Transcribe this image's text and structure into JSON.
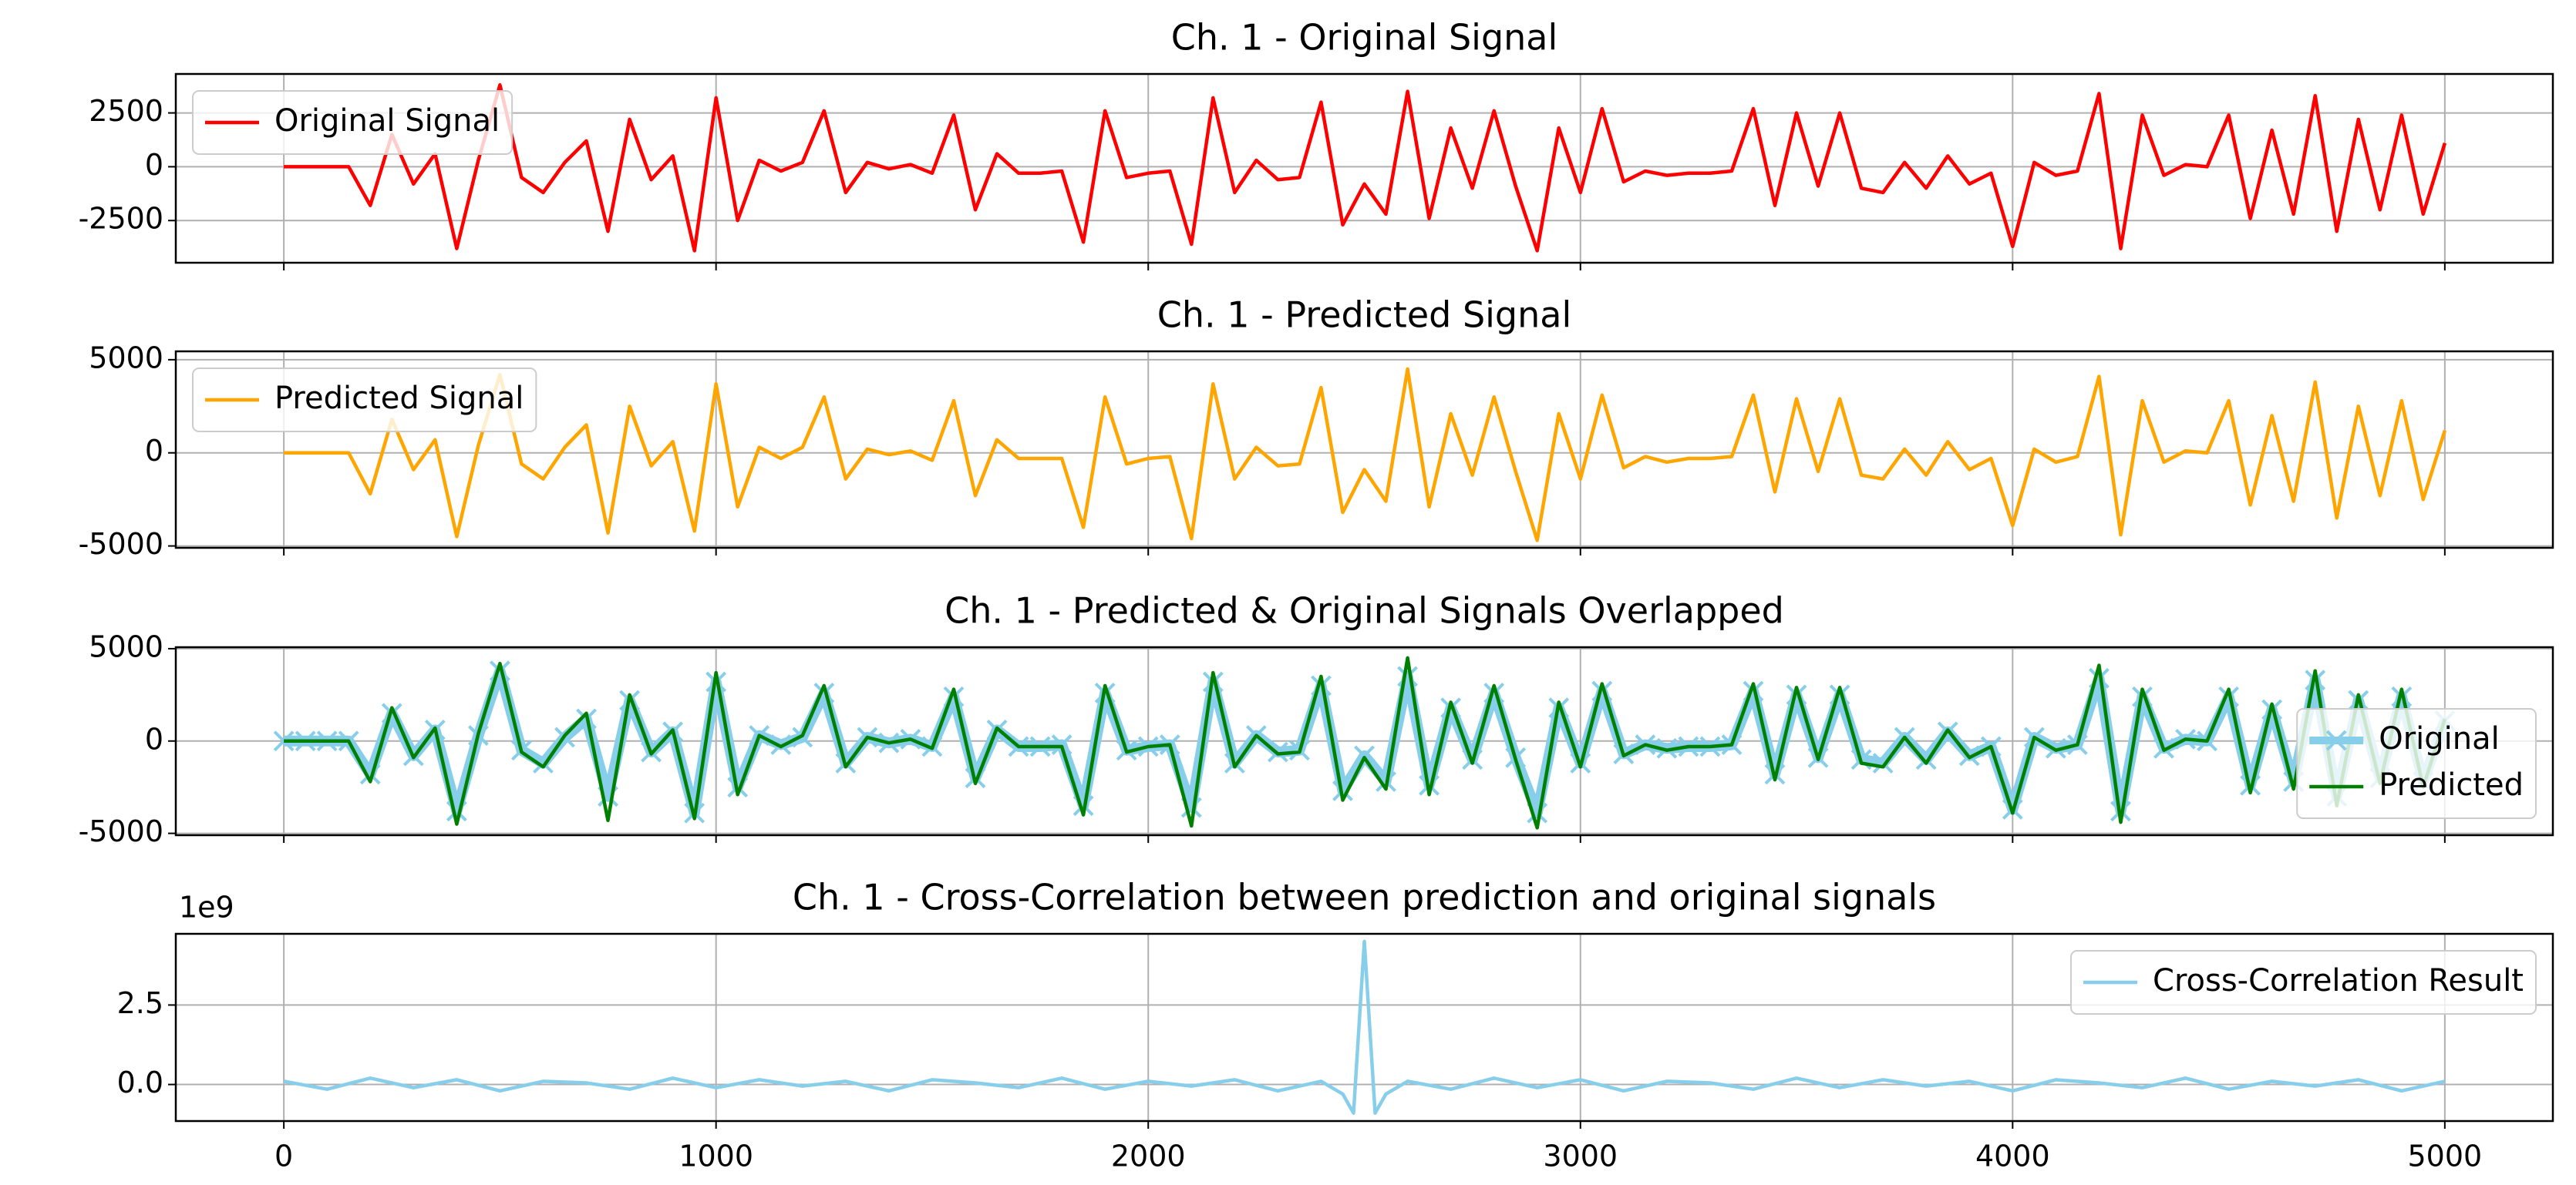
{
  "chart_data": [
    {
      "type": "line",
      "title": "Ch. 1 - Original Signal",
      "x": [
        0,
        50,
        100,
        150,
        200,
        250,
        300,
        350,
        400,
        450,
        500,
        550,
        600,
        650,
        700,
        750,
        800,
        850,
        900,
        950,
        1000,
        1050,
        1100,
        1150,
        1200,
        1250,
        1300,
        1350,
        1400,
        1450,
        1500,
        1550,
        1600,
        1650,
        1700,
        1750,
        1800,
        1850,
        1900,
        1950,
        2000,
        2050,
        2100,
        2150,
        2200,
        2250,
        2300,
        2350,
        2400,
        2450,
        2500,
        2550,
        2600,
        2650,
        2700,
        2750,
        2800,
        2850,
        2900,
        2950,
        3000,
        3050,
        3100,
        3150,
        3200,
        3250,
        3300,
        3350,
        3400,
        3450,
        3500,
        3550,
        3600,
        3650,
        3700,
        3750,
        3800,
        3850,
        3900,
        3950,
        4000,
        4050,
        4100,
        4150,
        4200,
        4250,
        4300,
        4350,
        4400,
        4450,
        4500,
        4550,
        4600,
        4650,
        4700,
        4750,
        4800,
        4850,
        4900,
        4950,
        5000
      ],
      "series": [
        {
          "name": "Original Signal",
          "color": "#ff0000",
          "values": [
            0,
            0,
            0,
            0,
            -1800,
            1500,
            -800,
            600,
            -3800,
            300,
            3800,
            -500,
            -1200,
            200,
            1200,
            -3000,
            2200,
            -600,
            500,
            -3900,
            3200,
            -2500,
            300,
            -200,
            200,
            2600,
            -1200,
            200,
            -100,
            100,
            -300,
            2400,
            -2000,
            600,
            -300,
            -300,
            -200,
            -3500,
            2600,
            -500,
            -300,
            -200,
            -3600,
            3200,
            -1200,
            300,
            -600,
            -500,
            3000,
            -2700,
            -800,
            -2200,
            3500,
            -2400,
            1800,
            -1000,
            2600,
            -900,
            -3900,
            1800,
            -1200,
            2700,
            -700,
            -200,
            -400,
            -300,
            -300,
            -200,
            2700,
            -1800,
            2500,
            -900,
            2500,
            -1000,
            -1200,
            200,
            -1000,
            500,
            -800,
            -300,
            -3700,
            200,
            -400,
            -200,
            3400,
            -3800,
            2400,
            -400,
            100,
            0,
            2400,
            -2400,
            1700,
            -2200,
            3300,
            -3000,
            2200,
            -2000,
            2400,
            -2200,
            1100
          ]
        }
      ],
      "xlim": [
        -250,
        5250
      ],
      "xticks": [
        0,
        1000,
        2000,
        3000,
        4000,
        5000
      ],
      "ylim": [
        -4460,
        4310
      ],
      "yticks": [
        2500,
        0,
        -2500
      ],
      "grid": true,
      "legend": "upper left"
    },
    {
      "type": "line",
      "title": "Ch. 1 - Predicted Signal",
      "x": [
        0,
        50,
        100,
        150,
        200,
        250,
        300,
        350,
        400,
        450,
        500,
        550,
        600,
        650,
        700,
        750,
        800,
        850,
        900,
        950,
        1000,
        1050,
        1100,
        1150,
        1200,
        1250,
        1300,
        1350,
        1400,
        1450,
        1500,
        1550,
        1600,
        1650,
        1700,
        1750,
        1800,
        1850,
        1900,
        1950,
        2000,
        2050,
        2100,
        2150,
        2200,
        2250,
        2300,
        2350,
        2400,
        2450,
        2500,
        2550,
        2600,
        2650,
        2700,
        2750,
        2800,
        2850,
        2900,
        2950,
        3000,
        3050,
        3100,
        3150,
        3200,
        3250,
        3300,
        3350,
        3400,
        3450,
        3500,
        3550,
        3600,
        3650,
        3700,
        3750,
        3800,
        3850,
        3900,
        3950,
        4000,
        4050,
        4100,
        4150,
        4200,
        4250,
        4300,
        4350,
        4400,
        4450,
        4500,
        4550,
        4600,
        4650,
        4700,
        4750,
        4800,
        4850,
        4900,
        4950,
        5000
      ],
      "series": [
        {
          "name": "Predicted Signal",
          "color": "#ffa500",
          "values": [
            0,
            0,
            0,
            0,
            -2200,
            1800,
            -900,
            700,
            -4500,
            400,
            4200,
            -600,
            -1400,
            300,
            1500,
            -4300,
            2500,
            -700,
            600,
            -4200,
            3700,
            -2900,
            300,
            -300,
            300,
            3000,
            -1400,
            200,
            -100,
            100,
            -400,
            2800,
            -2300,
            700,
            -300,
            -300,
            -300,
            -4000,
            3000,
            -600,
            -300,
            -200,
            -4600,
            3700,
            -1400,
            300,
            -700,
            -600,
            3500,
            -3200,
            -900,
            -2600,
            4500,
            -2900,
            2100,
            -1200,
            3000,
            -1000,
            -4700,
            2100,
            -1400,
            3100,
            -800,
            -200,
            -500,
            -300,
            -300,
            -200,
            3100,
            -2100,
            2900,
            -1000,
            2900,
            -1200,
            -1400,
            200,
            -1200,
            600,
            -900,
            -300,
            -3900,
            200,
            -500,
            -200,
            4100,
            -4400,
            2800,
            -500,
            100,
            0,
            2800,
            -2800,
            2000,
            -2600,
            3800,
            -3500,
            2500,
            -2300,
            2800,
            -2500,
            1200
          ]
        }
      ],
      "xlim": [
        -250,
        5250
      ],
      "xticks": [
        0,
        1000,
        2000,
        3000,
        4000,
        5000
      ],
      "ylim": [
        -5100,
        5450
      ],
      "yticks": [
        5000,
        0,
        -5000
      ],
      "grid": true,
      "legend": "upper left"
    },
    {
      "type": "line",
      "title": "Ch. 1 - Predicted & Original Signals Overlapped",
      "x": [
        0,
        50,
        100,
        150,
        200,
        250,
        300,
        350,
        400,
        450,
        500,
        550,
        600,
        650,
        700,
        750,
        800,
        850,
        900,
        950,
        1000,
        1050,
        1100,
        1150,
        1200,
        1250,
        1300,
        1350,
        1400,
        1450,
        1500,
        1550,
        1600,
        1650,
        1700,
        1750,
        1800,
        1850,
        1900,
        1950,
        2000,
        2050,
        2100,
        2150,
        2200,
        2250,
        2300,
        2350,
        2400,
        2450,
        2500,
        2550,
        2600,
        2650,
        2700,
        2750,
        2800,
        2850,
        2900,
        2950,
        3000,
        3050,
        3100,
        3150,
        3200,
        3250,
        3300,
        3350,
        3400,
        3450,
        3500,
        3550,
        3600,
        3650,
        3700,
        3750,
        3800,
        3850,
        3900,
        3950,
        4000,
        4050,
        4100,
        4150,
        4200,
        4250,
        4300,
        4350,
        4400,
        4450,
        4500,
        4550,
        4600,
        4650,
        4700,
        4750,
        4800,
        4850,
        4900,
        4950,
        5000
      ],
      "series": [
        {
          "name": "Original",
          "color": "#87ceeb",
          "marker": "x",
          "values": [
            0,
            0,
            0,
            0,
            -1800,
            1500,
            -800,
            600,
            -3800,
            300,
            3800,
            -500,
            -1200,
            200,
            1200,
            -3000,
            2200,
            -600,
            500,
            -3900,
            3200,
            -2500,
            300,
            -200,
            200,
            2600,
            -1200,
            200,
            -100,
            100,
            -300,
            2400,
            -2000,
            600,
            -300,
            -300,
            -200,
            -3500,
            2600,
            -500,
            -300,
            -200,
            -3600,
            3200,
            -1200,
            300,
            -600,
            -500,
            3000,
            -2700,
            -800,
            -2200,
            3500,
            -2400,
            1800,
            -1000,
            2600,
            -900,
            -3900,
            1800,
            -1200,
            2700,
            -700,
            -200,
            -400,
            -300,
            -300,
            -200,
            2700,
            -1800,
            2500,
            -900,
            2500,
            -1000,
            -1200,
            200,
            -1000,
            500,
            -800,
            -300,
            -3700,
            200,
            -400,
            -200,
            3400,
            -3800,
            2400,
            -400,
            100,
            0,
            2400,
            -2400,
            1700,
            -2200,
            3300,
            -3000,
            2200,
            -2000,
            2400,
            -2200,
            1100
          ]
        },
        {
          "name": "Predicted",
          "color": "#008000",
          "values": [
            0,
            0,
            0,
            0,
            -2200,
            1800,
            -900,
            700,
            -4500,
            400,
            4200,
            -600,
            -1400,
            300,
            1500,
            -4300,
            2500,
            -700,
            600,
            -4200,
            3700,
            -2900,
            300,
            -300,
            300,
            3000,
            -1400,
            200,
            -100,
            100,
            -400,
            2800,
            -2300,
            700,
            -300,
            -300,
            -300,
            -4000,
            3000,
            -600,
            -300,
            -200,
            -4600,
            3700,
            -1400,
            300,
            -700,
            -600,
            3500,
            -3200,
            -900,
            -2600,
            4500,
            -2900,
            2100,
            -1200,
            3000,
            -1000,
            -4700,
            2100,
            -1400,
            3100,
            -800,
            -200,
            -500,
            -300,
            -300,
            -200,
            3100,
            -2100,
            2900,
            -1000,
            2900,
            -1200,
            -1400,
            200,
            -1200,
            600,
            -900,
            -300,
            -3900,
            200,
            -500,
            -200,
            4100,
            -4400,
            2800,
            -500,
            100,
            0,
            2800,
            -2800,
            2000,
            -2600,
            3800,
            -3500,
            2500,
            -2300,
            2800,
            -2500,
            1200
          ]
        }
      ],
      "xlim": [
        -250,
        5250
      ],
      "xticks": [
        0,
        1000,
        2000,
        3000,
        4000,
        5000
      ],
      "ylim": [
        -5100,
        5080
      ],
      "yticks": [
        5000,
        0,
        -5000
      ],
      "grid": true,
      "legend": "lower right"
    },
    {
      "type": "line",
      "title": "Ch. 1 - Cross-Correlation between prediction and original signals",
      "y_offset_label": "1e9",
      "x": [
        0,
        100,
        200,
        300,
        400,
        500,
        600,
        700,
        800,
        900,
        1000,
        1100,
        1200,
        1300,
        1400,
        1500,
        1600,
        1700,
        1800,
        1900,
        2000,
        2100,
        2200,
        2300,
        2400,
        2450,
        2475,
        2500,
        2525,
        2550,
        2600,
        2700,
        2800,
        2900,
        3000,
        3100,
        3200,
        3300,
        3400,
        3500,
        3600,
        3700,
        3800,
        3900,
        4000,
        4100,
        4200,
        4300,
        4400,
        4500,
        4600,
        4700,
        4800,
        4900,
        5000
      ],
      "series": [
        {
          "name": "Cross-Correlation Result",
          "color": "#87ceeb",
          "values": [
            0.1,
            -0.15,
            0.2,
            -0.1,
            0.15,
            -0.2,
            0.1,
            0.05,
            -0.15,
            0.2,
            -0.1,
            0.15,
            -0.05,
            0.1,
            -0.2,
            0.15,
            0.05,
            -0.1,
            0.2,
            -0.15,
            0.1,
            -0.05,
            0.15,
            -0.2,
            0.1,
            -0.3,
            -0.9,
            4.5,
            -0.9,
            -0.3,
            0.1,
            -0.15,
            0.2,
            -0.1,
            0.15,
            -0.2,
            0.1,
            0.05,
            -0.15,
            0.2,
            -0.1,
            0.15,
            -0.05,
            0.1,
            -0.2,
            0.15,
            0.05,
            -0.1,
            0.2,
            -0.15,
            0.1,
            -0.05,
            0.15,
            -0.2,
            0.1
          ]
        }
      ],
      "xlim": [
        -250,
        5250
      ],
      "xticks": [
        0,
        1000,
        2000,
        3000,
        4000,
        5000
      ],
      "ylim": [
        -1.15,
        4.74
      ],
      "yticks": [
        2.5,
        {
          "value": 0,
          "label": "0.0"
        }
      ],
      "grid": true,
      "legend": "upper right"
    }
  ]
}
